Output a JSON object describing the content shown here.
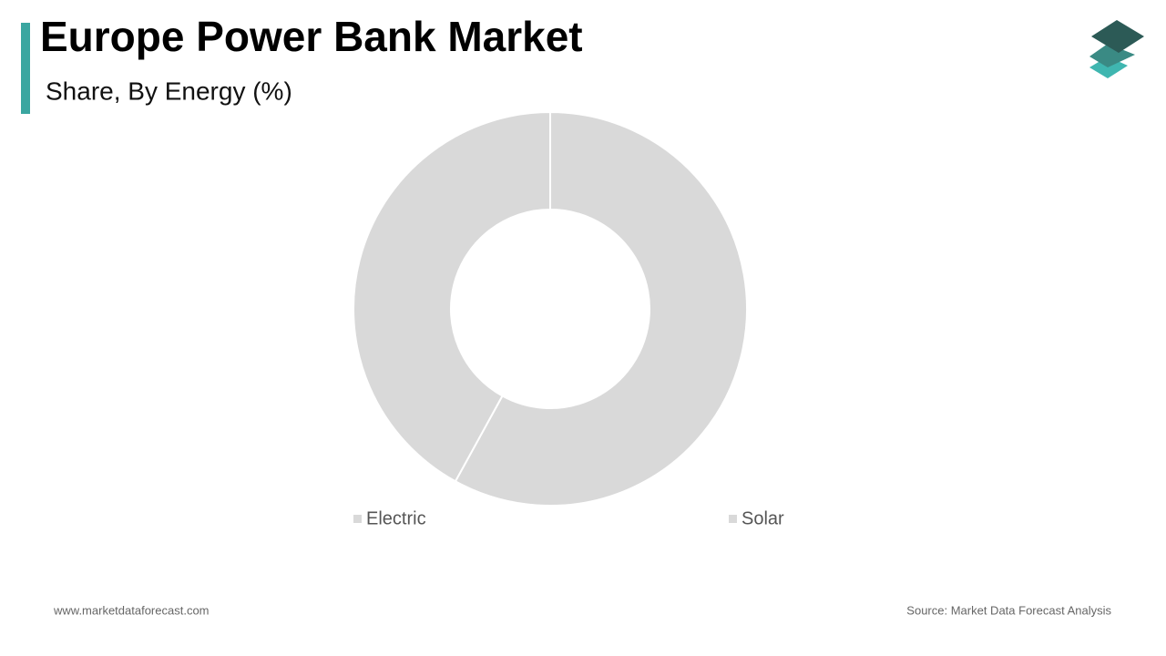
{
  "chart_data": {
    "type": "donut",
    "title": "Europe Power Bank Market",
    "subtitle": "Share, By Energy (%)",
    "categories": [
      "Electric",
      "Solar"
    ],
    "series": [
      {
        "values": [
          58,
          42
        ],
        "colors": [
          "#d9d9d9",
          "#d9d9d9"
        ]
      }
    ],
    "website": "www.marketdataforecast.com",
    "source": "Source: Market Data Forecast Analysis"
  }
}
